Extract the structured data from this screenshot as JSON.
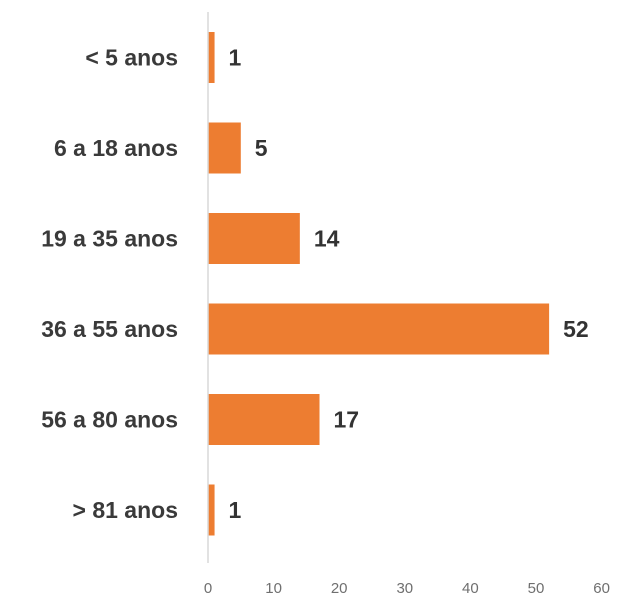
{
  "chart_data": {
    "type": "bar",
    "orientation": "horizontal",
    "categories": [
      "< 5 anos",
      "6 a 18 anos",
      "19 a 35 anos",
      "36 a 55 anos",
      "56 a 80 anos",
      "> 81 anos"
    ],
    "values": [
      1,
      5,
      14,
      52,
      17,
      1
    ],
    "data_labels": [
      "1",
      "5",
      "14",
      "52",
      "17",
      "1"
    ],
    "xlim": [
      0,
      60
    ],
    "x_ticks": [
      0,
      10,
      20,
      30,
      40,
      50,
      60
    ],
    "x_tick_labels": [
      "0",
      "10",
      "20",
      "30",
      "40",
      "50",
      "60"
    ],
    "grid": false,
    "legend": "none",
    "title": "",
    "xlabel": "",
    "ylabel": "",
    "bar_color": "#ed7d31",
    "axis_color": "#d9d9d9"
  }
}
